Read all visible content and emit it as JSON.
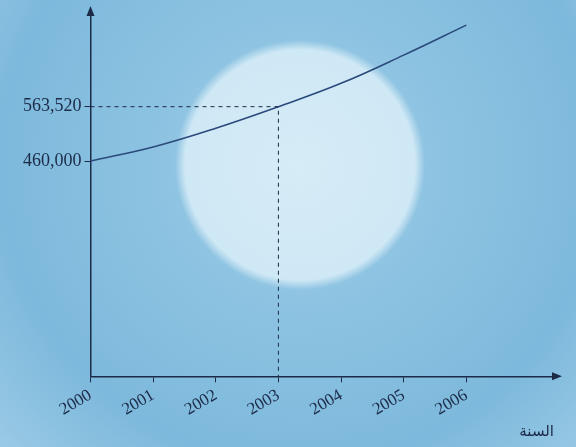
{
  "chart_data": {
    "type": "line",
    "x_label": "السنة",
    "x": [
      2000,
      2001,
      2002,
      2003,
      2004,
      2005,
      2006
    ],
    "values": [
      460000,
      486800,
      522500,
      563520,
      608000,
      661700,
      718800
    ],
    "color": "#2b4a7c",
    "xlim": [
      2000,
      2007.4
    ],
    "xticks": [
      2000,
      2001,
      2002,
      2003,
      2004,
      2005,
      2006
    ],
    "ylim": [
      50000,
      740000
    ],
    "yticks": [
      {
        "value": 460000,
        "label": "460,000"
      },
      {
        "value": 563520,
        "label": "563,520"
      }
    ],
    "guide_point": {
      "x": 2003,
      "y": 563520
    },
    "grid": false,
    "tick_labels": true
  }
}
